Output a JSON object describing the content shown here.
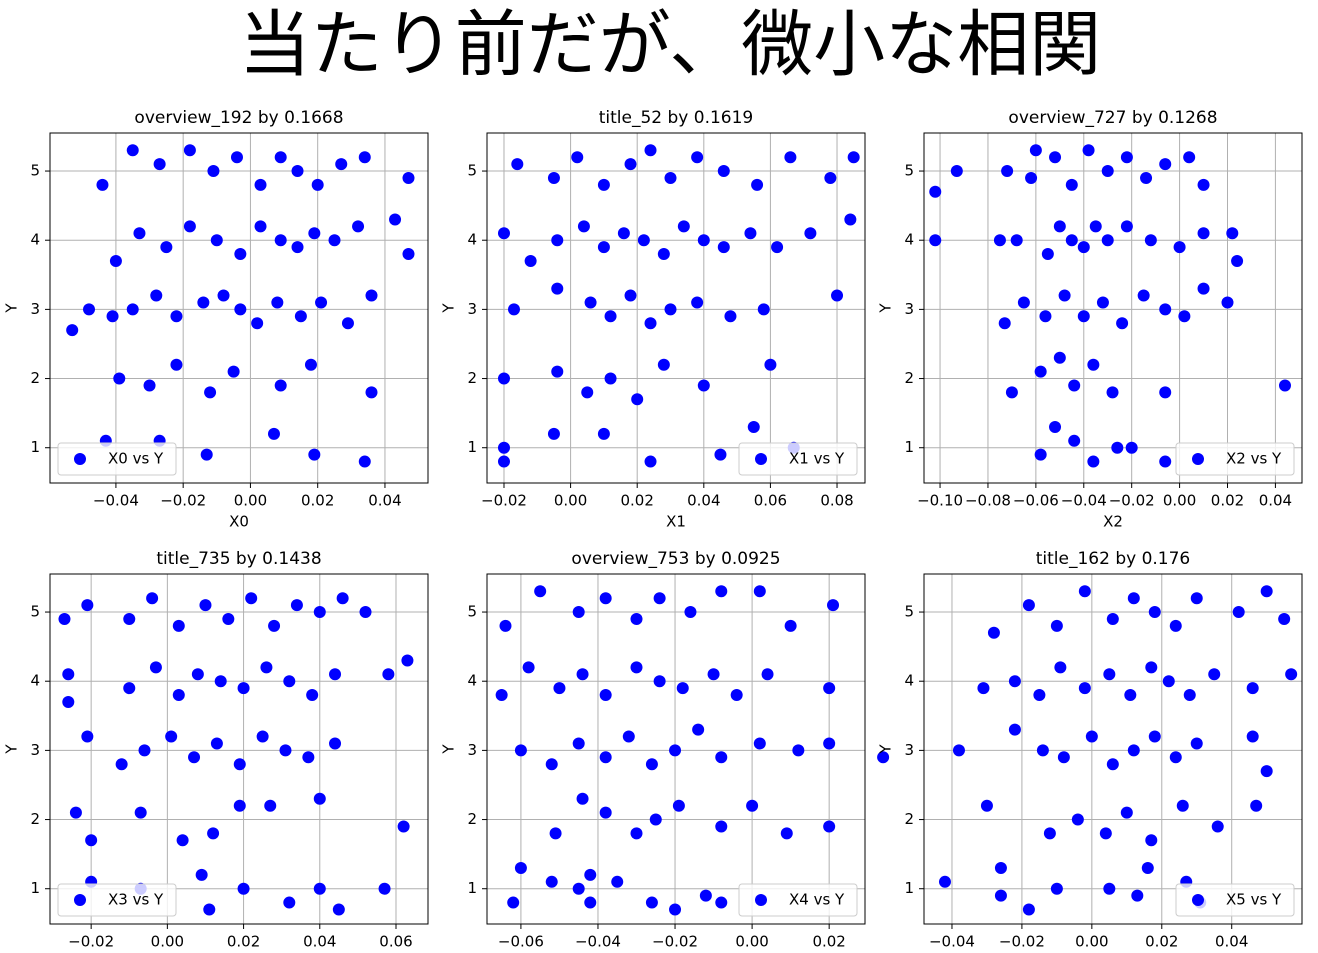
{
  "title": "当たり前だが、微小な相関",
  "chart_data": [
    {
      "type": "scatter",
      "title": "overview_192 by 0.1668",
      "xlabel": "X0",
      "ylabel": "Y",
      "grid": true,
      "legend": "lower left",
      "xlim": [
        -0.0596,
        0.0528
      ],
      "ylim": [
        0.49,
        5.55
      ],
      "xticks": [
        {
          "value": -0.04,
          "label": "−0.04"
        },
        {
          "value": -0.02,
          "label": "−0.02"
        },
        {
          "value": 0,
          "label": "0.00"
        },
        0.02,
        0.04
      ],
      "yticks": [
        1,
        2,
        3,
        4,
        5
      ],
      "series": [
        {
          "name": "X0 vs Y",
          "color": "#0000ff",
          "x": [
            -0.053,
            -0.048,
            -0.041,
            -0.035,
            -0.028,
            -0.022,
            -0.014,
            -0.008,
            -0.003,
            0.002,
            0.008,
            0.015,
            0.021,
            0.029,
            0.036,
            -0.044,
            -0.035,
            -0.027,
            -0.018,
            -0.011,
            -0.004,
            0.003,
            0.009,
            0.014,
            0.02,
            0.027,
            0.034,
            0.047,
            -0.04,
            -0.033,
            -0.025,
            -0.018,
            -0.01,
            -0.003,
            0.003,
            0.009,
            0.014,
            0.019,
            0.025,
            0.032,
            0.043,
            0.047,
            -0.039,
            -0.03,
            -0.022,
            -0.012,
            -0.005,
            0.009,
            0.018,
            0.036,
            -0.043,
            -0.027,
            -0.013,
            0.007,
            0.019,
            0.034
          ],
          "values": [
            2.7,
            3.0,
            2.9,
            3.0,
            3.2,
            2.9,
            3.1,
            3.2,
            3.0,
            2.8,
            3.1,
            2.9,
            3.1,
            2.8,
            3.2,
            4.8,
            5.3,
            5.1,
            5.3,
            5.0,
            5.2,
            4.8,
            5.2,
            5.0,
            4.8,
            5.1,
            5.2,
            4.9,
            3.7,
            4.1,
            3.9,
            4.2,
            4.0,
            3.8,
            4.2,
            4.0,
            3.9,
            4.1,
            4.0,
            4.2,
            4.3,
            3.8,
            2.0,
            1.9,
            2.2,
            1.8,
            2.1,
            1.9,
            2.2,
            1.8,
            1.1,
            1.1,
            0.9,
            1.2,
            0.9,
            0.8
          ]
        }
      ]
    },
    {
      "type": "scatter",
      "title": "title_52 by 0.1619",
      "xlabel": "X1",
      "ylabel": "Y",
      "grid": true,
      "legend": "lower right",
      "xlim": [
        -0.0251,
        0.0884
      ],
      "ylim": [
        0.49,
        5.55
      ],
      "xticks": [
        {
          "value": -0.02,
          "label": "−0.02"
        },
        {
          "value": 0,
          "label": "0.00"
        },
        0.02,
        0.04,
        0.06,
        0.08
      ],
      "yticks": [
        1,
        2,
        3,
        4,
        5
      ],
      "series": [
        {
          "name": "X1 vs Y",
          "color": "#0000ff",
          "x": [
            -0.02,
            -0.02,
            -0.005,
            0.01,
            0.024,
            0.045,
            0.055,
            0.067,
            -0.02,
            -0.004,
            0.005,
            0.012,
            0.02,
            0.028,
            0.04,
            0.06,
            -0.017,
            -0.004,
            0.006,
            0.012,
            0.018,
            0.024,
            0.03,
            0.038,
            0.048,
            0.058,
            0.08,
            -0.02,
            -0.012,
            -0.004,
            0.004,
            0.01,
            0.016,
            0.022,
            0.028,
            0.034,
            0.04,
            0.046,
            0.054,
            0.062,
            0.072,
            0.084,
            -0.016,
            -0.005,
            0.002,
            0.01,
            0.018,
            0.024,
            0.03,
            0.038,
            0.046,
            0.056,
            0.066,
            0.078,
            0.085
          ],
          "values": [
            0.8,
            1.0,
            1.2,
            1.2,
            0.8,
            0.9,
            1.3,
            1.0,
            2.0,
            2.1,
            1.8,
            2.0,
            1.7,
            2.2,
            1.9,
            2.2,
            3.0,
            3.3,
            3.1,
            2.9,
            3.2,
            2.8,
            3.0,
            3.1,
            2.9,
            3.0,
            3.2,
            4.1,
            3.7,
            4.0,
            4.2,
            3.9,
            4.1,
            4.0,
            3.8,
            4.2,
            4.0,
            3.9,
            4.1,
            3.9,
            4.1,
            4.3,
            5.1,
            4.9,
            5.2,
            4.8,
            5.1,
            5.3,
            4.9,
            5.2,
            5.0,
            4.8,
            5.2,
            4.9,
            5.2
          ]
        }
      ]
    },
    {
      "type": "scatter",
      "title": "overview_727 by 0.1268",
      "xlabel": "X2",
      "ylabel": "Y",
      "grid": true,
      "legend": "lower right",
      "xlim": [
        -0.1067,
        0.0511
      ],
      "ylim": [
        0.49,
        5.55
      ],
      "xticks": [
        {
          "value": -0.1,
          "label": "−0.10"
        },
        {
          "value": -0.08,
          "label": "−0.08"
        },
        {
          "value": -0.06,
          "label": "−0.06"
        },
        {
          "value": -0.04,
          "label": "−0.04"
        },
        {
          "value": -0.02,
          "label": "−0.02"
        },
        {
          "value": 0,
          "label": "0.00"
        },
        0.02,
        0.04
      ],
      "yticks": [
        1,
        2,
        3,
        4,
        5
      ],
      "series": [
        {
          "name": "X2 vs Y",
          "color": "#0000ff",
          "x": [
            -0.102,
            -0.102,
            -0.093,
            -0.075,
            -0.068,
            -0.06,
            -0.055,
            -0.05,
            -0.045,
            -0.04,
            -0.035,
            -0.03,
            -0.022,
            -0.012,
            0.0,
            0.01,
            0.022,
            0.024,
            -0.072,
            -0.062,
            -0.052,
            -0.045,
            -0.038,
            -0.03,
            -0.022,
            -0.014,
            -0.006,
            0.004,
            0.01,
            -0.073,
            -0.065,
            -0.056,
            -0.048,
            -0.04,
            -0.032,
            -0.024,
            -0.015,
            -0.006,
            0.002,
            0.01,
            0.02,
            -0.07,
            -0.058,
            -0.05,
            -0.044,
            -0.036,
            -0.028,
            -0.006,
            0.044,
            -0.058,
            -0.052,
            -0.044,
            -0.036,
            -0.026,
            -0.02,
            -0.006
          ],
          "values": [
            4.0,
            4.7,
            5.0,
            4.0,
            4.0,
            5.3,
            3.8,
            4.2,
            4.0,
            3.9,
            4.2,
            4.0,
            4.2,
            4.0,
            3.9,
            4.1,
            4.1,
            3.7,
            5.0,
            4.9,
            5.2,
            4.8,
            5.3,
            5.0,
            5.2,
            4.9,
            5.1,
            5.2,
            4.8,
            2.8,
            3.1,
            2.9,
            3.2,
            2.9,
            3.1,
            2.8,
            3.2,
            3.0,
            2.9,
            3.3,
            3.1,
            1.8,
            2.1,
            2.3,
            1.9,
            2.2,
            1.8,
            1.8,
            1.9,
            0.9,
            1.3,
            1.1,
            0.8,
            1.0,
            1.0,
            0.8
          ]
        }
      ]
    },
    {
      "type": "scatter",
      "title": "title_735 by 0.1438",
      "ylabel": "Y",
      "grid": true,
      "legend": "lower left",
      "xlim": [
        -0.0308,
        0.0684
      ],
      "ylim": [
        0.49,
        5.55
      ],
      "xticks": [
        {
          "value": -0.02,
          "label": "−0.02"
        },
        {
          "value": 0,
          "label": "0.00"
        },
        0.02,
        0.04,
        0.06
      ],
      "yticks": [
        1,
        2,
        3,
        4,
        5
      ],
      "series": [
        {
          "name": "X3 vs Y",
          "color": "#0000ff",
          "x": [
            -0.027,
            -0.021,
            -0.01,
            -0.004,
            0.003,
            0.01,
            0.016,
            0.022,
            0.028,
            0.034,
            0.04,
            0.046,
            0.052,
            -0.026,
            -0.026,
            -0.01,
            -0.003,
            0.003,
            0.008,
            0.014,
            0.02,
            0.026,
            0.032,
            0.038,
            0.044,
            0.058,
            0.063,
            -0.021,
            -0.012,
            -0.006,
            0.001,
            0.007,
            0.013,
            0.019,
            0.025,
            0.031,
            0.037,
            0.044,
            -0.024,
            -0.02,
            -0.007,
            0.004,
            0.012,
            0.019,
            0.027,
            0.04,
            0.062,
            -0.02,
            -0.007,
            0.009,
            0.011,
            0.02,
            0.032,
            0.04,
            0.045,
            0.057
          ],
          "values": [
            4.9,
            5.1,
            4.9,
            5.2,
            4.8,
            5.1,
            4.9,
            5.2,
            4.8,
            5.1,
            5.0,
            5.2,
            5.0,
            3.7,
            4.1,
            3.9,
            4.2,
            3.8,
            4.1,
            4.0,
            3.9,
            4.2,
            4.0,
            3.8,
            4.1,
            4.1,
            4.3,
            3.2,
            2.8,
            3.0,
            3.2,
            2.9,
            3.1,
            2.8,
            3.2,
            3.0,
            2.9,
            3.1,
            2.1,
            1.7,
            2.1,
            1.7,
            1.8,
            2.2,
            2.2,
            2.3,
            1.9,
            1.1,
            1.0,
            1.2,
            0.7,
            1.0,
            0.8,
            1.0,
            0.7,
            1.0
          ]
        }
      ]
    },
    {
      "type": "scatter",
      "title": "overview_753 by 0.0925",
      "ylabel": "Y",
      "grid": true,
      "legend": "lower right",
      "xlim": [
        -0.0688,
        0.0293
      ],
      "ylim": [
        0.49,
        5.55
      ],
      "xticks": [
        {
          "value": -0.06,
          "label": "−0.06"
        },
        {
          "value": -0.04,
          "label": "−0.04"
        },
        {
          "value": -0.02,
          "label": "−0.02"
        },
        {
          "value": 0,
          "label": "0.00"
        },
        0.02
      ],
      "yticks": [
        1,
        2,
        3,
        4,
        5
      ],
      "series": [
        {
          "name": "X4 vs Y",
          "color": "#0000ff",
          "x": [
            -0.062,
            -0.06,
            -0.045,
            -0.042,
            -0.035,
            -0.026,
            -0.02,
            -0.012,
            -0.008,
            -0.052,
            -0.042,
            -0.051,
            -0.044,
            -0.038,
            -0.03,
            -0.025,
            -0.019,
            -0.008,
            0.0,
            0.009,
            0.02,
            -0.06,
            -0.052,
            -0.045,
            -0.038,
            -0.032,
            -0.026,
            -0.02,
            -0.014,
            -0.008,
            0.002,
            0.012,
            0.02,
            0.034,
            -0.065,
            -0.058,
            -0.05,
            -0.044,
            -0.038,
            -0.03,
            -0.024,
            -0.018,
            -0.01,
            -0.004,
            0.004,
            0.02,
            -0.064,
            -0.055,
            -0.045,
            -0.038,
            -0.03,
            -0.024,
            -0.016,
            -0.008,
            0.002,
            0.01,
            0.021
          ],
          "values": [
            0.8,
            1.3,
            1.0,
            0.8,
            1.1,
            0.8,
            0.7,
            0.9,
            0.8,
            1.1,
            1.2,
            1.8,
            2.3,
            2.1,
            1.8,
            2.0,
            2.2,
            1.9,
            2.2,
            1.8,
            1.9,
            3.0,
            2.8,
            3.1,
            2.9,
            3.2,
            2.8,
            3.0,
            3.3,
            2.9,
            3.1,
            3.0,
            3.1,
            2.9,
            3.8,
            4.2,
            3.9,
            4.1,
            3.8,
            4.2,
            4.0,
            3.9,
            4.1,
            3.8,
            4.1,
            3.9,
            4.8,
            5.3,
            5.0,
            5.2,
            4.9,
            5.2,
            5.0,
            5.3,
            5.3,
            4.8,
            5.1
          ]
        }
      ]
    },
    {
      "type": "scatter",
      "title": "title_162 by 0.176",
      "ylabel": "Y",
      "grid": true,
      "legend": "lower right",
      "xlim": [
        -0.048,
        0.0601
      ],
      "ylim": [
        0.49,
        5.55
      ],
      "xticks": [
        {
          "value": -0.04,
          "label": "−0.04"
        },
        {
          "value": -0.02,
          "label": "−0.02"
        },
        {
          "value": 0,
          "label": "0.00"
        },
        0.02,
        0.04
      ],
      "yticks": [
        1,
        2,
        3,
        4,
        5
      ],
      "series": [
        {
          "name": "X5 vs Y",
          "color": "#0000ff",
          "x": [
            -0.042,
            -0.026,
            -0.018,
            -0.01,
            0.005,
            0.013,
            0.016,
            0.027,
            0.031,
            -0.026,
            -0.012,
            -0.004,
            0.004,
            0.01,
            0.017,
            0.026,
            0.036,
            0.047,
            -0.038,
            -0.03,
            -0.022,
            -0.014,
            -0.008,
            0.0,
            0.006,
            0.012,
            0.018,
            0.024,
            0.03,
            0.046,
            0.05,
            -0.031,
            -0.022,
            -0.015,
            -0.009,
            -0.002,
            0.005,
            0.011,
            0.017,
            0.022,
            0.028,
            0.035,
            0.046,
            0.057,
            -0.028,
            -0.018,
            -0.01,
            -0.002,
            0.006,
            0.012,
            0.018,
            0.024,
            0.03,
            0.042,
            0.05,
            0.055
          ],
          "values": [
            1.1,
            0.9,
            0.7,
            1.0,
            1.0,
            0.9,
            1.3,
            1.1,
            0.8,
            1.3,
            1.8,
            2.0,
            1.8,
            2.1,
            1.7,
            2.2,
            1.9,
            2.2,
            3.0,
            2.2,
            3.3,
            3.0,
            2.9,
            3.2,
            2.8,
            3.0,
            3.2,
            2.9,
            3.1,
            3.2,
            2.7,
            3.9,
            4.0,
            3.8,
            4.2,
            3.9,
            4.1,
            3.8,
            4.2,
            4.0,
            3.8,
            4.1,
            3.9,
            4.1,
            4.7,
            5.1,
            4.8,
            5.3,
            4.9,
            5.2,
            5.0,
            4.8,
            5.2,
            5.0,
            5.3,
            4.9
          ]
        }
      ]
    }
  ]
}
